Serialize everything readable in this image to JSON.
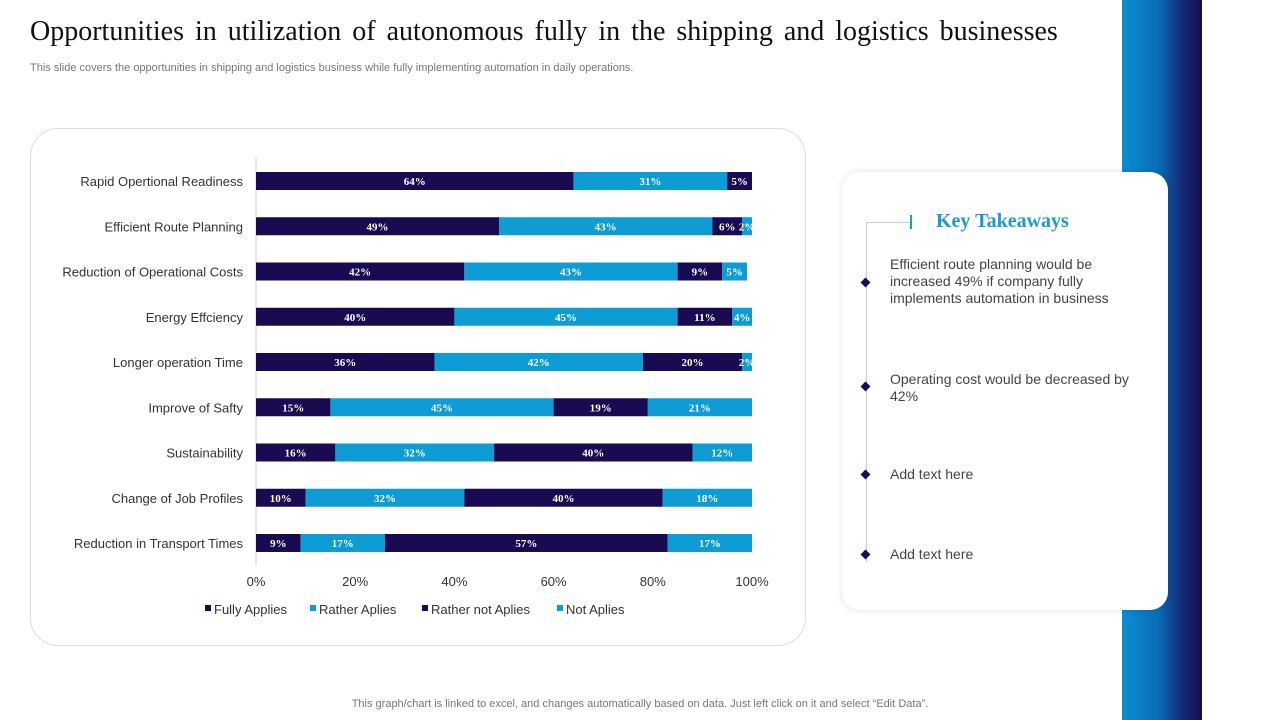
{
  "header": {
    "title": "Opportunities in utilization of autonomous fully in the shipping and logistics businesses",
    "subtitle": "This slide covers the opportunities in shipping and logistics business while fully implementing automation in daily operations."
  },
  "chart_data": {
    "type": "bar",
    "orientation": "horizontal",
    "stacked": true,
    "categories": [
      "Rapid Opertional  Readiness",
      "Efficient Route Planning",
      "Reduction of Operational Costs",
      "Energy Effciency",
      "Longer operation Time",
      "Improve of Safty",
      "Sustainability",
      "Change of Job Profiles",
      "Reduction in Transport Times"
    ],
    "series": [
      {
        "name": "Fully Applies",
        "color": "#1a0a52",
        "values": [
          64,
          49,
          42,
          40,
          36,
          15,
          16,
          10,
          9
        ]
      },
      {
        "name": "Rather Aplies",
        "color": "#0e9cd4",
        "values": [
          31,
          43,
          43,
          45,
          42,
          45,
          32,
          32,
          17
        ]
      },
      {
        "name": "Rather not Aplies",
        "color": "#1a0a52",
        "values": [
          5,
          6,
          9,
          11,
          20,
          19,
          40,
          40,
          57
        ]
      },
      {
        "name": "Not Aplies",
        "color": "#0e9cd4",
        "values": [
          0,
          2,
          5,
          4,
          2,
          21,
          12,
          18,
          17
        ]
      }
    ],
    "xticks": [
      "0%",
      "20%",
      "40%",
      "60%",
      "80%",
      "100%"
    ],
    "xlim": [
      0,
      100
    ],
    "legend": "bottom",
    "grid": false
  },
  "takeaways": {
    "title": "Key Takeaways",
    "items": [
      "Efficient route planning would be increased 49% if company fully implements automation in business",
      "Operating cost would be decreased by 42%",
      "Add text here",
      "Add text here"
    ]
  },
  "footer": "This graph/chart is linked to excel,  and changes automatically based on data. Just left click on it and select “Edit Data”."
}
